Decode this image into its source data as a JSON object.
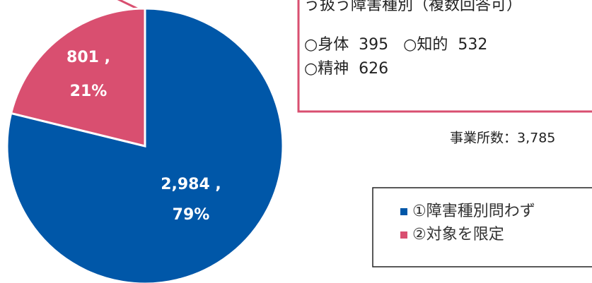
{
  "chart_data": {
    "type": "pie",
    "categories": [
      "①障害種別問わず",
      "②対象を限定"
    ],
    "values": [
      2984,
      801
    ],
    "value_labels": [
      "2,984 ,",
      "801 ,"
    ],
    "percent_labels": [
      "79%",
      "21%"
    ],
    "colors": [
      "#0057a8",
      "#d94f70"
    ],
    "annotation_lines": [
      "う扱う障害種別（複数回答可）",
      "○身体  395   ○知的  532",
      "○精神  626"
    ],
    "total_label": "事業所数：3,785",
    "legend": "right"
  }
}
